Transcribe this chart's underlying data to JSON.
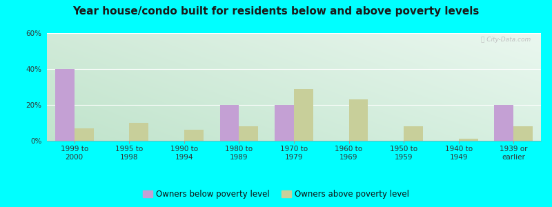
{
  "title": "Year house/condo built for residents below and above poverty levels",
  "categories": [
    "1999 to\n2000",
    "1995 to\n1998",
    "1990 to\n1994",
    "1980 to\n1989",
    "1970 to\n1979",
    "1960 to\n1969",
    "1950 to\n1959",
    "1940 to\n1949",
    "1939 or\nearlier"
  ],
  "below_poverty": [
    40,
    0,
    0,
    20,
    20,
    0,
    0,
    0,
    20
  ],
  "above_poverty": [
    7,
    10,
    6,
    8,
    29,
    23,
    8,
    1,
    8
  ],
  "below_color": "#c4a0d4",
  "above_color": "#c8cf9a",
  "ylim": [
    0,
    60
  ],
  "yticks": [
    0,
    20,
    40,
    60
  ],
  "ytick_labels": [
    "0%",
    "20%",
    "40%",
    "60%"
  ],
  "bar_width": 0.35,
  "legend_below": "Owners below poverty level",
  "legend_above": "Owners above poverty level",
  "bg_color_topleft": "#d8efd0",
  "bg_color_topright": "#e8f8f0",
  "bg_color_bottom": "#e0f0e8",
  "outer_color": "#00ffff",
  "title_fontsize": 11,
  "tick_fontsize": 7.5,
  "legend_fontsize": 8.5
}
